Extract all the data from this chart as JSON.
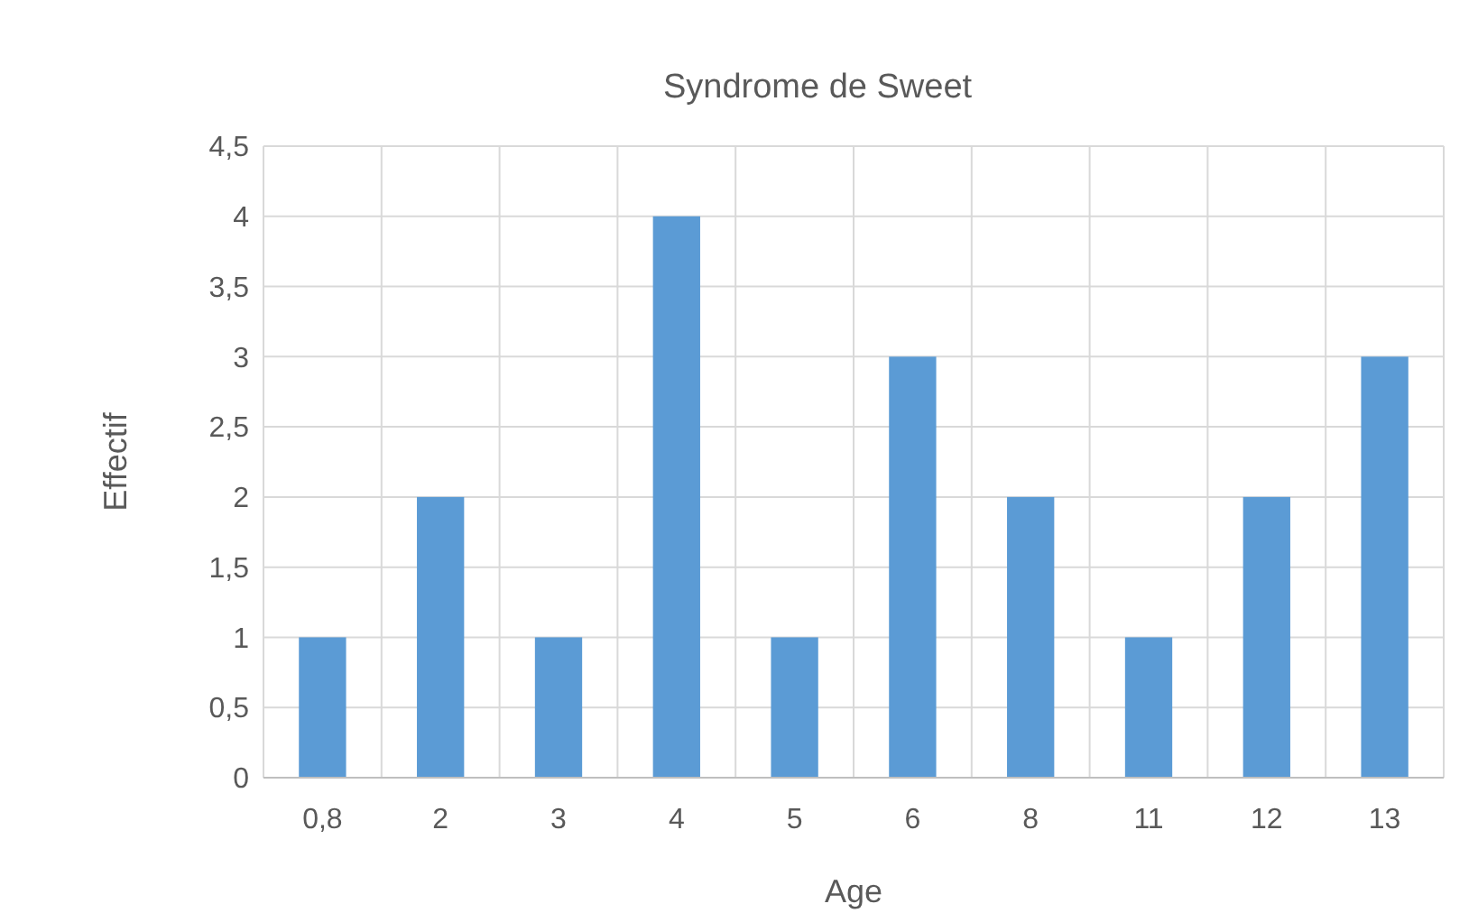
{
  "chart_data": {
    "type": "bar",
    "title": "Syndrome de Sweet",
    "xlabel": "Age",
    "ylabel": "Effectif",
    "categories": [
      "0,8",
      "2",
      "3",
      "4",
      "5",
      "6",
      "8",
      "11",
      "12",
      "13"
    ],
    "values": [
      1,
      2,
      1,
      4,
      1,
      3,
      2,
      1,
      2,
      3
    ],
    "color": "#5b9bd5",
    "ylim": [
      0,
      4.5
    ],
    "yticks": [
      0,
      {
        "value": 0.5,
        "label": "0,5"
      },
      1,
      {
        "value": 1.5,
        "label": "1,5"
      },
      2,
      {
        "value": 2.5,
        "label": "2,5"
      },
      3,
      {
        "value": 3.5,
        "label": "3,5"
      },
      4,
      {
        "value": 4.5,
        "label": "4,5"
      }
    ],
    "grid": true
  }
}
